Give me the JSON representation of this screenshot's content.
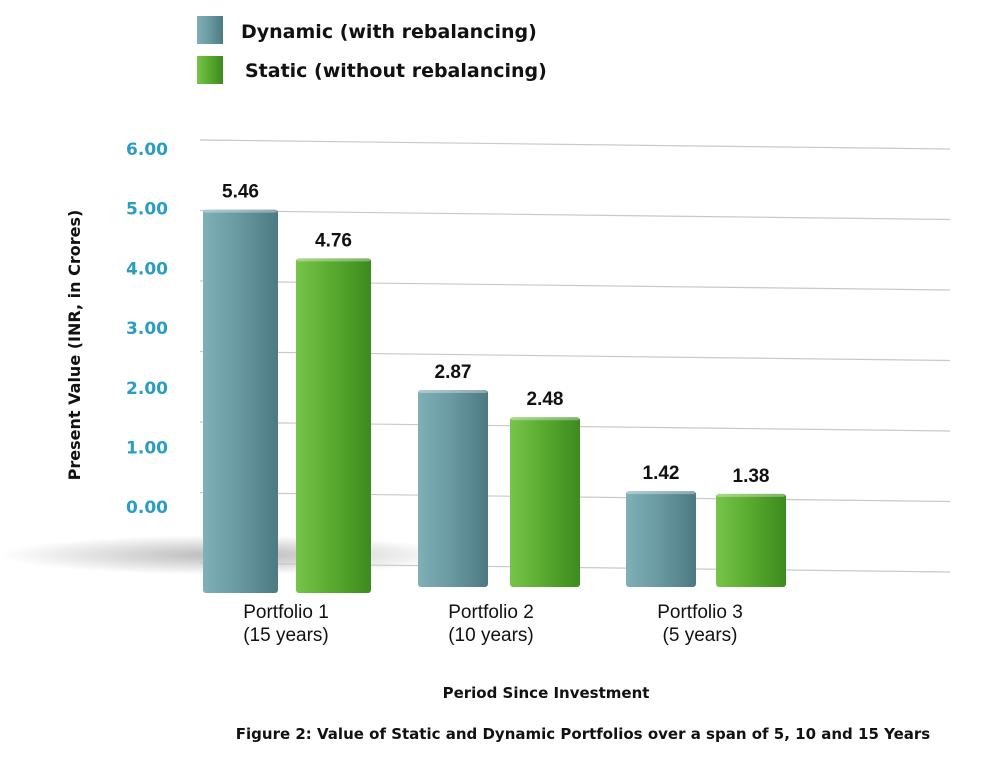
{
  "chart_data": {
    "type": "bar",
    "categories": [
      {
        "line1": "Portfolio 1",
        "line2": "(15 years)"
      },
      {
        "line1": "Portfolio 2",
        "line2": "(10 years)"
      },
      {
        "line1": "Portfolio 3",
        "line2": "(5 years)"
      }
    ],
    "series": [
      {
        "name": "Dynamic (with rebalancing)",
        "color": "#5e8e96",
        "values": [
          5.46,
          2.87,
          1.42
        ],
        "labels": [
          "5.46",
          "2.87",
          "1.42"
        ]
      },
      {
        "name": "Static (without rebalancing)",
        "color": "#55a52c",
        "values": [
          4.76,
          2.48,
          1.38
        ],
        "labels": [
          "4.76",
          "2.48",
          "1.38"
        ]
      }
    ],
    "yticks": [
      "6.00",
      "5.00",
      "4.00",
      "3.00",
      "2.00",
      "1.00",
      "0.00"
    ],
    "xlabel": "Period Since Investment",
    "ylabel": "Present Value (INR, in Crores)",
    "caption": "Figure 2:  Value of Static and Dynamic Portfolios over a span of 5, 10 and 15 Years",
    "legend": "top-left",
    "grid": true
  }
}
